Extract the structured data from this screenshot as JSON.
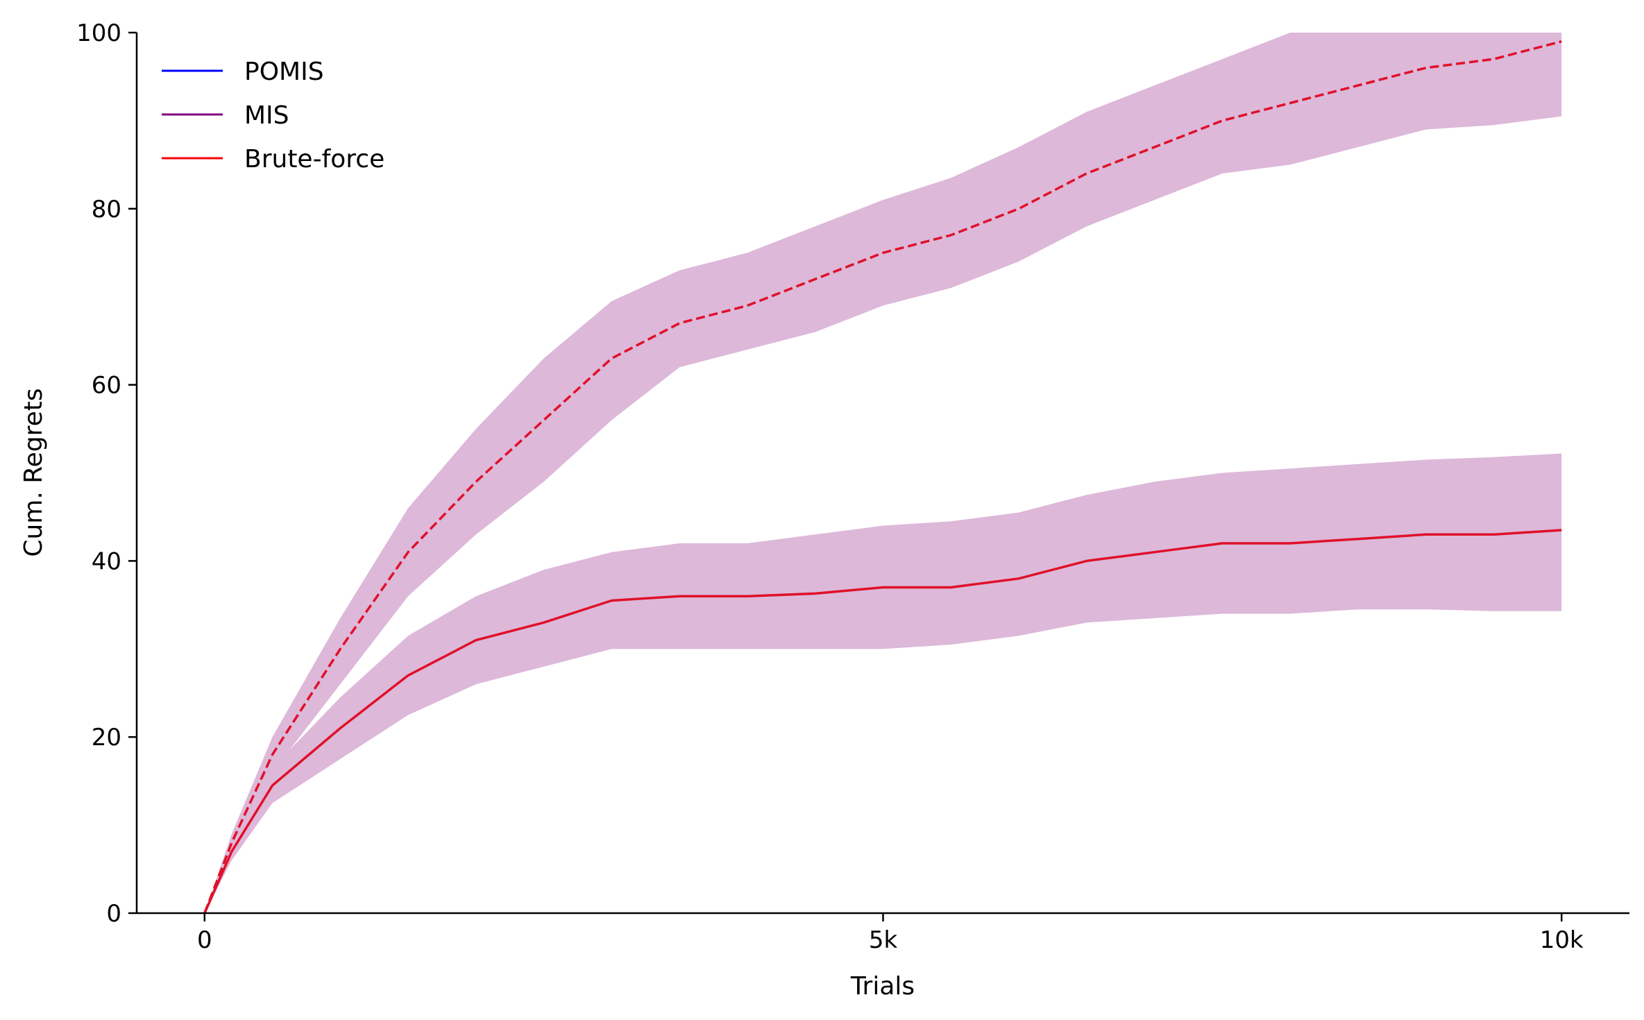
{
  "chart_data": {
    "type": "line",
    "xlabel": "Trials",
    "ylabel": "Cum. Regrets",
    "xlim": [
      -500,
      10500
    ],
    "ylim": [
      0,
      100
    ],
    "x_ticks": [
      {
        "value": 0,
        "label": "0"
      },
      {
        "value": 5000,
        "label": "5k"
      },
      {
        "value": 10000,
        "label": "10k"
      }
    ],
    "y_ticks": [
      {
        "value": 0,
        "label": "0"
      },
      {
        "value": 20,
        "label": "20"
      },
      {
        "value": 40,
        "label": "40"
      },
      {
        "value": 60,
        "label": "60"
      },
      {
        "value": 80,
        "label": "80"
      },
      {
        "value": 100,
        "label": "100"
      }
    ],
    "grid": false,
    "legend_position": "top-left",
    "band_color": "#ddb8d9",
    "legend": [
      {
        "name": "POMIS",
        "color": "#0000ff"
      },
      {
        "name": "MIS",
        "color": "#800080"
      },
      {
        "name": "Brute-force",
        "color": "#ff0000"
      }
    ],
    "series": [
      {
        "style": "dashed",
        "color": "#e0102a",
        "x": [
          0,
          200,
          500,
          1000,
          1500,
          2000,
          2500,
          3000,
          3500,
          4000,
          4500,
          5000,
          5500,
          6000,
          6500,
          7000,
          7500,
          8000,
          8500,
          9000,
          9500,
          10000
        ],
        "y": [
          0,
          8,
          18,
          30,
          41,
          49,
          56,
          63,
          67,
          69,
          72,
          75,
          77,
          80,
          84,
          87,
          90,
          92,
          94,
          96,
          97,
          99
        ],
        "lower": [
          0,
          7,
          16,
          26,
          36,
          43,
          49,
          56,
          62,
          64,
          66,
          69,
          71,
          74,
          78,
          81,
          84,
          85,
          87,
          89,
          89.5,
          90.5
        ],
        "upper": [
          0,
          9,
          20,
          33.5,
          46,
          55,
          63,
          69.5,
          73,
          75,
          78,
          81,
          83.5,
          87,
          91,
          94,
          97,
          100,
          100,
          100,
          100,
          100
        ]
      },
      {
        "style": "solid",
        "color": "#e0102a",
        "x": [
          0,
          200,
          500,
          1000,
          1500,
          2000,
          2500,
          3000,
          3500,
          4000,
          4500,
          5000,
          5500,
          6000,
          6500,
          7000,
          7500,
          8000,
          8500,
          9000,
          9500,
          10000
        ],
        "y": [
          0,
          7,
          14.5,
          21,
          27,
          31,
          33,
          35.5,
          36,
          36,
          36.3,
          37,
          37,
          38,
          40,
          41,
          42,
          42,
          42.5,
          43,
          43,
          43.5
        ],
        "lower": [
          0,
          6,
          12.5,
          17.5,
          22.5,
          26,
          28,
          30,
          30,
          30,
          30,
          30,
          30.5,
          31.5,
          33,
          33.5,
          34,
          34,
          34.5,
          34.5,
          34.3,
          34.3
        ],
        "upper": [
          0,
          8,
          16.5,
          24.5,
          31.5,
          36,
          39,
          41,
          42,
          42,
          43,
          44,
          44.5,
          45.5,
          47.5,
          49,
          50,
          50.5,
          51,
          51.5,
          51.8,
          52.2
        ]
      }
    ]
  }
}
